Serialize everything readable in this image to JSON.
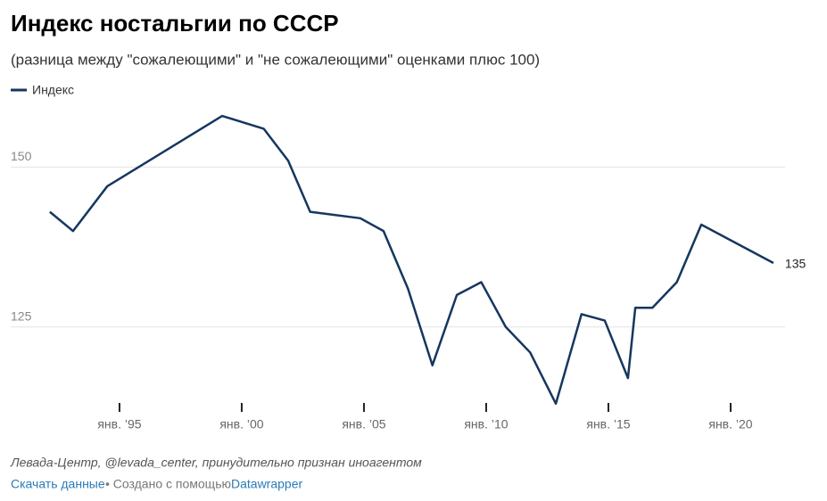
{
  "chart_data": {
    "type": "line",
    "title": "Индекс ностальгии по СССР",
    "subtitle": "(разница между \"сожалеющими\" и \"не сожалеющими\" оценками плюс 100)",
    "x": [
      1992.15,
      1993.1,
      1994.5,
      1999.2,
      2000.9,
      2001.9,
      2002.8,
      2004.85,
      2005.8,
      2006.8,
      2007.8,
      2008.8,
      2009.8,
      2010.8,
      2011.8,
      2012.85,
      2013.9,
      2014.85,
      2015.8,
      2016.1,
      2016.8,
      2017.8,
      2018.8,
      2021.75
    ],
    "series": [
      {
        "name": "Индекс",
        "color": "#15375f",
        "values": [
          143,
          140,
          147,
          158,
          156,
          151,
          143,
          142,
          140,
          131,
          119,
          130,
          132,
          125,
          121,
          113,
          127,
          126,
          117,
          128,
          128,
          132,
          141,
          135
        ]
      }
    ],
    "xlim": [
      1991.9,
      2022.3
    ],
    "xticks": [
      {
        "value": 1995,
        "label": "янв. ’95"
      },
      {
        "value": 2000,
        "label": "янв. ’00"
      },
      {
        "value": 2005,
        "label": "янв. ’05"
      },
      {
        "value": 2010,
        "label": "янв. ’10"
      },
      {
        "value": 2015,
        "label": "янв. ’15"
      },
      {
        "value": 2020,
        "label": "янв. ’20"
      }
    ],
    "ylim": [
      112,
      159.4
    ],
    "yticks": [
      125,
      150
    ],
    "grid": true,
    "source": "Левада-Центр, @levada_center, принудительно признан иноагентом",
    "footer": {
      "download": "Скачать данные",
      "made_with": "• Создано с помощью",
      "tool": "Datawrapper"
    }
  }
}
